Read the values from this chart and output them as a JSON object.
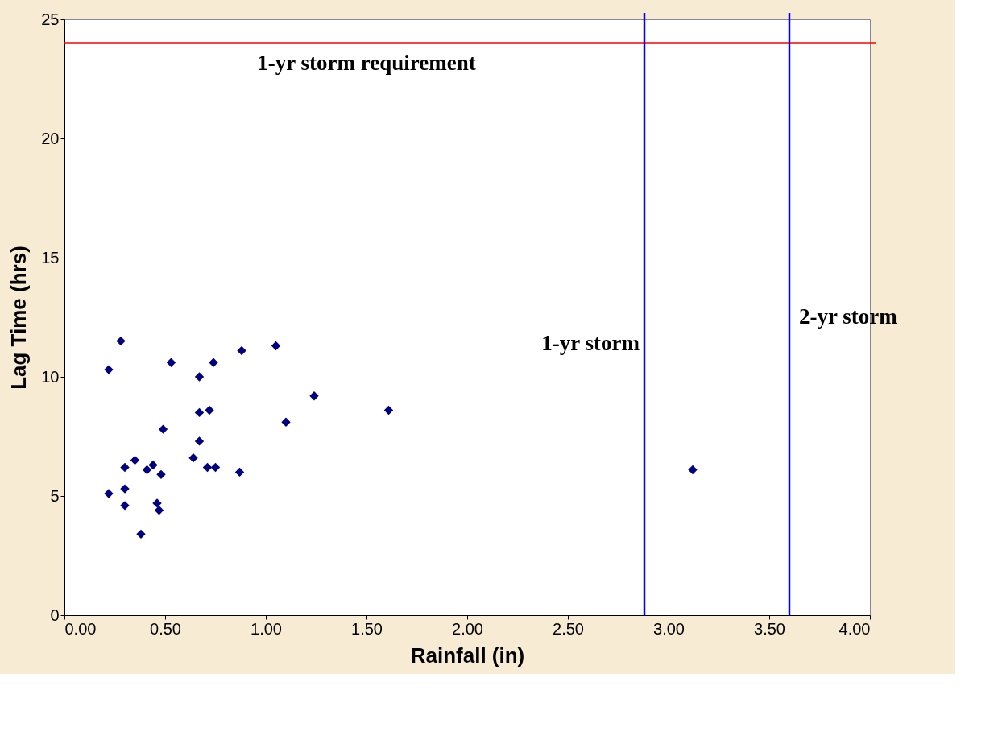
{
  "chart_data": {
    "type": "scatter",
    "xlabel": "Rainfall (in)",
    "ylabel": "Lag Time (hrs)",
    "x": [
      0.22,
      0.28,
      0.22,
      0.3,
      0.3,
      0.3,
      0.35,
      0.38,
      0.41,
      0.44,
      0.48,
      0.46,
      0.47,
      0.49,
      0.53,
      0.64,
      0.67,
      0.67,
      0.67,
      0.72,
      0.71,
      0.75,
      0.74,
      0.87,
      0.88,
      1.05,
      1.1,
      1.24,
      1.61,
      3.12
    ],
    "series": [
      {
        "color": "#000080",
        "values": [
          10.3,
          11.5,
          5.1,
          6.2,
          5.3,
          4.6,
          6.5,
          3.4,
          6.1,
          6.3,
          5.9,
          4.7,
          4.4,
          7.8,
          10.6,
          6.6,
          10.0,
          8.5,
          7.3,
          8.6,
          6.2,
          6.2,
          10.6,
          6.0,
          11.1,
          11.3,
          8.1,
          9.2,
          8.6,
          6.1
        ]
      }
    ],
    "xlim": [
      0,
      4
    ],
    "ylim": [
      0,
      25
    ],
    "xticks": [
      {
        "value": 0,
        "label": "0.00"
      },
      {
        "value": 0.5,
        "label": "0.50"
      },
      {
        "value": 1,
        "label": "1.00"
      },
      {
        "value": 1.5,
        "label": "1.50"
      },
      {
        "value": 2,
        "label": "2.00"
      },
      {
        "value": 2.5,
        "label": "2.50"
      },
      {
        "value": 3,
        "label": "3.00"
      },
      {
        "value": 3.5,
        "label": "3.50"
      },
      {
        "value": 4,
        "label": "4.00"
      }
    ],
    "yticks": [
      0,
      5,
      10,
      15,
      20,
      25
    ],
    "ref_lines": [
      {
        "axis": "y",
        "value": 24,
        "label": "1-yr storm requirement",
        "color": "#ff0000"
      },
      {
        "axis": "x",
        "value": 2.88,
        "label": "1-yr storm",
        "color": "#0000ff"
      },
      {
        "axis": "x",
        "value": 3.6,
        "label": "2-yr storm",
        "color": "#0000ff"
      }
    ],
    "grid": false,
    "marker": "diamond"
  }
}
